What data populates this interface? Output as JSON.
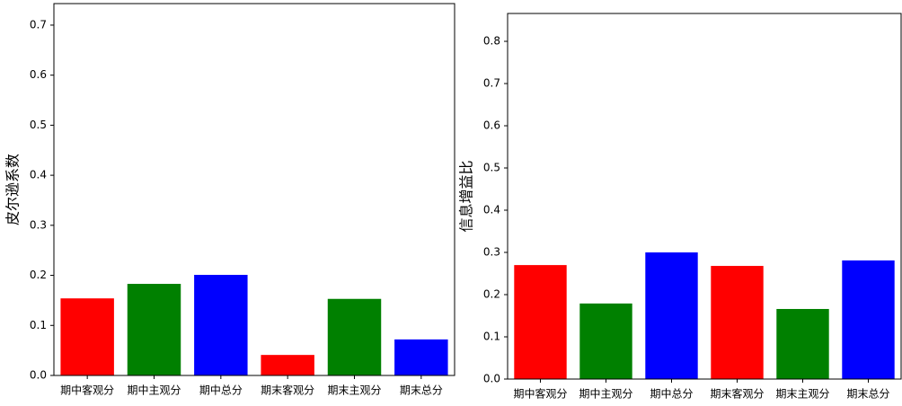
{
  "chart_data": [
    {
      "type": "bar",
      "ylabel": "皮尔逊系数",
      "categories": [
        "期中客观分",
        "期中主观分",
        "期中总分",
        "期末客观分",
        "期末主观分",
        "期末总分"
      ],
      "values": [
        0.154,
        0.183,
        0.201,
        0.041,
        0.153,
        0.072
      ],
      "colors": [
        "#ff0000",
        "#008000",
        "#0000ff",
        "#ff0000",
        "#008000",
        "#0000ff"
      ],
      "ylim": [
        0,
        0.743
      ],
      "yticks": [
        {
          "value": 0,
          "label": "0.0"
        },
        0.1,
        0.2,
        0.3,
        0.4,
        0.5,
        0.6,
        0.7
      ]
    },
    {
      "type": "bar",
      "ylabel": "信息增益比",
      "categories": [
        "期中客观分",
        "期中主观分",
        "期中总分",
        "期末客观分",
        "期末主观分",
        "期末总分"
      ],
      "values": [
        0.27,
        0.179,
        0.3,
        0.268,
        0.166,
        0.281
      ],
      "colors": [
        "#ff0000",
        "#008000",
        "#0000ff",
        "#ff0000",
        "#008000",
        "#0000ff"
      ],
      "ylim": [
        0,
        0.866
      ],
      "yticks": [
        {
          "value": 0,
          "label": "0.0"
        },
        0.1,
        0.2,
        0.3,
        0.4,
        0.5,
        0.6,
        0.7,
        0.8
      ]
    }
  ]
}
